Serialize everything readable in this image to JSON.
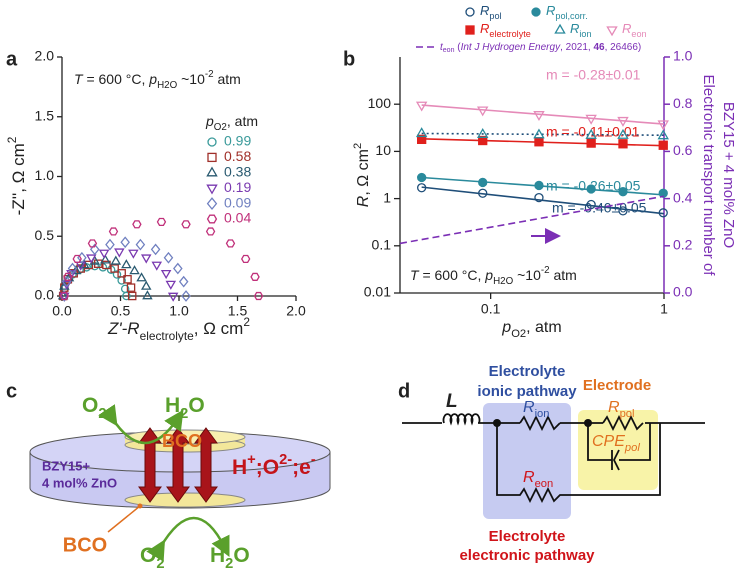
{
  "chart_data": [
    {
      "type": "scatter",
      "label": "a",
      "annotation": [
        "T",
        " = 600 °C, ",
        "p",
        "H2O",
        " ~10",
        "-2",
        " atm"
      ],
      "legend_title": [
        "p",
        "O2",
        ", atm"
      ],
      "xlabel": [
        "Z'-R",
        "electrolyte",
        ", Ω cm",
        "2"
      ],
      "ylabel": [
        "-Z'', Ω cm",
        "2"
      ],
      "xlim": [
        0,
        2
      ],
      "ylim": [
        0,
        2
      ],
      "xticks": [
        {
          "value": 0,
          "label": "0.0"
        },
        0.5,
        {
          "value": 1,
          "label": "1.0"
        },
        1.5,
        {
          "value": 2,
          "label": "2.0"
        }
      ],
      "yticks": [
        {
          "value": 0,
          "label": "0.0"
        },
        0.5,
        {
          "value": 1,
          "label": "1.0"
        },
        1.5,
        {
          "value": 2,
          "label": "2.0"
        }
      ],
      "series": [
        {
          "name": "0.99",
          "color": "#3a9a9a",
          "marker": "circle",
          "x": [
            0.01,
            0.02,
            0.05,
            0.09,
            0.15,
            0.21,
            0.28,
            0.35,
            0.42,
            0.47,
            0.51,
            0.54,
            0.55
          ],
          "values": [
            0,
            0.06,
            0.13,
            0.18,
            0.22,
            0.24,
            0.25,
            0.24,
            0.22,
            0.18,
            0.13,
            0.06,
            0
          ]
        },
        {
          "name": "0.58",
          "color": "#a0302a",
          "marker": "square",
          "x": [
            0.01,
            0.02,
            0.05,
            0.1,
            0.16,
            0.23,
            0.31,
            0.38,
            0.45,
            0.51,
            0.56,
            0.59,
            0.6
          ],
          "values": [
            0,
            0.07,
            0.14,
            0.19,
            0.23,
            0.26,
            0.27,
            0.26,
            0.23,
            0.19,
            0.14,
            0.07,
            0
          ]
        },
        {
          "name": "0.38",
          "color": "#2a5a70",
          "marker": "triangle-up",
          "x": [
            0.01,
            0.02,
            0.06,
            0.12,
            0.19,
            0.28,
            0.37,
            0.46,
            0.55,
            0.62,
            0.68,
            0.72,
            0.73
          ],
          "values": [
            0,
            0.08,
            0.15,
            0.21,
            0.26,
            0.29,
            0.3,
            0.29,
            0.26,
            0.21,
            0.15,
            0.08,
            0
          ]
        },
        {
          "name": "0.19",
          "color": "#7a3ab0",
          "marker": "triangle-down",
          "x": [
            0.02,
            0.04,
            0.08,
            0.16,
            0.25,
            0.36,
            0.49,
            0.61,
            0.72,
            0.81,
            0.89,
            0.93,
            0.95
          ],
          "values": [
            0,
            0.1,
            0.19,
            0.26,
            0.32,
            0.36,
            0.37,
            0.36,
            0.32,
            0.26,
            0.19,
            0.1,
            0
          ]
        },
        {
          "name": "0.09",
          "color": "#7080c0",
          "marker": "diamond",
          "x": [
            0.02,
            0.04,
            0.09,
            0.17,
            0.28,
            0.41,
            0.54,
            0.67,
            0.8,
            0.91,
            0.99,
            1.04,
            1.06
          ],
          "values": [
            0,
            0.12,
            0.23,
            0.32,
            0.39,
            0.43,
            0.45,
            0.43,
            0.39,
            0.32,
            0.23,
            0.12,
            0
          ]
        },
        {
          "name": "0.04",
          "color": "#c0307a",
          "marker": "hexagon",
          "x": [
            0.02,
            0.05,
            0.13,
            0.26,
            0.44,
            0.64,
            0.85,
            1.06,
            1.27,
            1.44,
            1.57,
            1.65,
            1.68
          ],
          "values": [
            0,
            0.16,
            0.31,
            0.44,
            0.54,
            0.6,
            0.62,
            0.6,
            0.54,
            0.44,
            0.31,
            0.16,
            0
          ]
        }
      ]
    },
    {
      "type": "scatter",
      "label": "b",
      "xscale": "log",
      "yscale": "log",
      "annotation": [
        "T",
        " = 600 °C, ",
        "p",
        "H2O",
        " ~10",
        "-2",
        " atm"
      ],
      "xlabel": [
        "p",
        "O2",
        ", atm"
      ],
      "ylabel": [
        "R",
        ", Ω cm",
        "2"
      ],
      "y2label": [
        "Electronic transport number of",
        "BZY15 + 4 mol% ZnO"
      ],
      "xlim": [
        0.03,
        1
      ],
      "ylim": [
        0.01,
        1000
      ],
      "y2lim": [
        0,
        1
      ],
      "xticks": [
        0.1,
        1
      ],
      "yticks": [
        0.01,
        0.1,
        1,
        10,
        100
      ],
      "y2ticks": [
        {
          "value": 0,
          "label": "0.0"
        },
        0.2,
        0.4,
        0.6,
        0.8,
        {
          "value": 1,
          "label": "1.0"
        }
      ],
      "y2color": "#7b2fb5",
      "x": [
        0.04,
        0.09,
        0.19,
        0.38,
        0.58,
        0.99
      ],
      "series": [
        {
          "name": [
            "R",
            "pol"
          ],
          "color": "#1f4e79",
          "marker": "circle",
          "filled": false,
          "values": [
            1.7,
            1.3,
            1.05,
            0.75,
            0.55,
            0.5
          ]
        },
        {
          "name": [
            "R",
            "pol,corr."
          ],
          "color": "#2a8a9c",
          "marker": "circle",
          "filled": true,
          "values": [
            2.8,
            2.2,
            1.9,
            1.6,
            1.4,
            1.3
          ]
        },
        {
          "name": [
            "R",
            "electrolyte"
          ],
          "color": "#e0201c",
          "marker": "square",
          "filled": true,
          "values": [
            18,
            17,
            16,
            15,
            14.5,
            13.5
          ]
        },
        {
          "name": [
            "R",
            "ion"
          ],
          "color": "#2a8a9c",
          "marker": "triangle-up",
          "filled": false,
          "values": [
            24,
            23,
            22.5,
            22,
            22,
            21.5
          ]
        },
        {
          "name": [
            "R",
            "eon"
          ],
          "color": "#e58ab8",
          "marker": "triangle-down",
          "filled": false,
          "values": [
            95,
            75,
            60,
            50,
            45,
            38
          ]
        },
        {
          "name": [
            "t",
            "eon",
            " (",
            "Int J Hydrogen Energy",
            ", 2021, ",
            "46",
            ", 26466)"
          ],
          "color": "#7b2fb5",
          "line_style": "dashed",
          "axis": "y2",
          "x": [
            0.03,
            1
          ],
          "values": [
            0.21,
            0.41
          ]
        }
      ],
      "fits": [
        {
          "label": "m = -0.28±0.01",
          "color": "#e58ab8",
          "x": [
            0.04,
            1
          ],
          "values": [
            96,
            38
          ]
        },
        {
          "label": "m = -0.11±0.01",
          "color": "#e0201c",
          "x": [
            0.04,
            1
          ],
          "values": [
            18.5,
            13.2
          ]
        },
        {
          "color": "#1f4e79",
          "line_style": "dotted",
          "x": [
            0.04,
            1
          ],
          "values": [
            24,
            22
          ]
        },
        {
          "label": "m = -0.26±0.05",
          "color": "#2a8a9c",
          "x": [
            0.04,
            1
          ],
          "values": [
            2.8,
            1.2
          ]
        },
        {
          "label": "m = -0.40±0.05",
          "color": "#1f4e79",
          "x": [
            0.04,
            1
          ],
          "values": [
            1.75,
            0.48
          ]
        }
      ]
    }
  ],
  "schematic": {
    "label": "c",
    "top_gases": [
      [
        "O",
        "2"
      ],
      [
        "H",
        "2",
        "O"
      ]
    ],
    "bottom_gases": [
      [
        "O",
        "2"
      ],
      [
        "H",
        "2",
        "O"
      ]
    ],
    "electrode": "BCO",
    "electrode_callout": "BCO",
    "electrolyte": [
      "BZY15+",
      "4 mol% ZnO"
    ],
    "carriers": [
      "H",
      "+",
      ";O",
      "2-",
      ";e",
      "-"
    ]
  },
  "circuit": {
    "label": "d",
    "inductor": "L",
    "ionic_pathway": [
      "Electrolyte",
      "ionic pathway"
    ],
    "electrode": "Electrode",
    "r_ion": [
      "R",
      "ion"
    ],
    "r_eon": [
      "R",
      "eon"
    ],
    "r_pol": [
      "R",
      "pol"
    ],
    "cpe": [
      "CPE",
      "pol"
    ],
    "electronic_pathway": [
      "Electrolyte",
      "electronic pathway"
    ]
  }
}
